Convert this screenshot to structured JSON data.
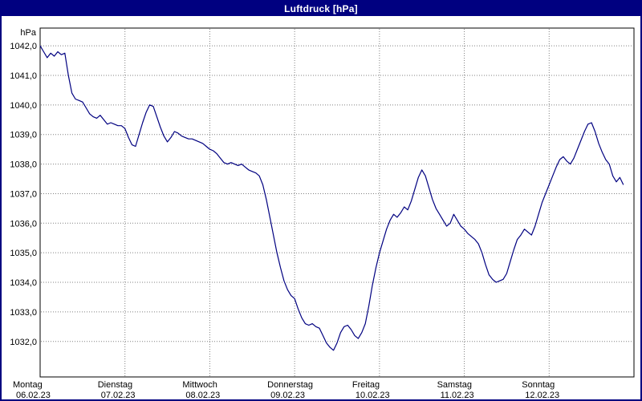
{
  "window": {
    "title": "Luftdruck [hPa]"
  },
  "colors": {
    "window_border": "#000080",
    "title_bar_bg": "#000080",
    "title_text": "#ffffff",
    "plot_bg": "#ffffff",
    "axis_border": "#000000",
    "grid": "#808080",
    "label_text": "#000000",
    "line": "#000080"
  },
  "chart_data": {
    "type": "line",
    "title": "Luftdruck [hPa]",
    "y_axis_unit_label": "hPa",
    "ylim": [
      1030.8,
      1042.6
    ],
    "grid": true,
    "legend": "none",
    "y_ticks": [
      {
        "value": 1042,
        "label": "1042,0"
      },
      {
        "value": 1041,
        "label": "1041,0"
      },
      {
        "value": 1040,
        "label": "1040,0"
      },
      {
        "value": 1039,
        "label": "1039,0"
      },
      {
        "value": 1038,
        "label": "1038,0"
      },
      {
        "value": 1037,
        "label": "1037,0"
      },
      {
        "value": 1036,
        "label": "1036,0"
      },
      {
        "value": 1035,
        "label": "1035,0"
      },
      {
        "value": 1034,
        "label": "1034,0"
      },
      {
        "value": 1033,
        "label": "1033,0"
      },
      {
        "value": 1032,
        "label": "1032,0"
      }
    ],
    "x_total_hours": 168,
    "x_sample_step_hours": 1,
    "x_days": [
      {
        "name": "Montag",
        "date": "06.02.23"
      },
      {
        "name": "Dienstag",
        "date": "07.02.23"
      },
      {
        "name": "Mittwoch",
        "date": "08.02.23"
      },
      {
        "name": "Donnerstag",
        "date": "09.02.23"
      },
      {
        "name": "Freitag",
        "date": "10.02.23"
      },
      {
        "name": "Samstag",
        "date": "11.02.23"
      },
      {
        "name": "Sonntag",
        "date": "12.02.23"
      }
    ],
    "series": [
      {
        "name": "Luftdruck",
        "unit": "hPa",
        "values": [
          1042.0,
          1041.8,
          1041.6,
          1041.75,
          1041.65,
          1041.8,
          1041.7,
          1041.75,
          1041.0,
          1040.4,
          1040.2,
          1040.15,
          1040.1,
          1039.9,
          1039.7,
          1039.6,
          1039.55,
          1039.65,
          1039.5,
          1039.35,
          1039.4,
          1039.35,
          1039.3,
          1039.3,
          1039.2,
          1038.9,
          1038.65,
          1038.6,
          1039.0,
          1039.4,
          1039.75,
          1040.0,
          1039.95,
          1039.6,
          1039.25,
          1038.95,
          1038.75,
          1038.9,
          1039.1,
          1039.05,
          1038.95,
          1038.9,
          1038.85,
          1038.85,
          1038.8,
          1038.75,
          1038.7,
          1038.6,
          1038.5,
          1038.45,
          1038.35,
          1038.2,
          1038.05,
          1038.0,
          1038.05,
          1038.0,
          1037.95,
          1038.0,
          1037.9,
          1037.8,
          1037.75,
          1037.7,
          1037.6,
          1037.3,
          1036.8,
          1036.2,
          1035.6,
          1035.0,
          1034.5,
          1034.05,
          1033.75,
          1033.55,
          1033.45,
          1033.1,
          1032.8,
          1032.6,
          1032.55,
          1032.6,
          1032.5,
          1032.45,
          1032.2,
          1031.95,
          1031.8,
          1031.7,
          1031.95,
          1032.3,
          1032.5,
          1032.55,
          1032.4,
          1032.2,
          1032.1,
          1032.3,
          1032.6,
          1033.2,
          1033.9,
          1034.5,
          1035.0,
          1035.4,
          1035.8,
          1036.1,
          1036.3,
          1036.2,
          1036.35,
          1036.55,
          1036.45,
          1036.75,
          1037.15,
          1037.55,
          1037.8,
          1037.6,
          1037.2,
          1036.8,
          1036.5,
          1036.3,
          1036.1,
          1035.9,
          1036.0,
          1036.3,
          1036.1,
          1035.9,
          1035.8,
          1035.65,
          1035.55,
          1035.45,
          1035.3,
          1035.0,
          1034.6,
          1034.25,
          1034.1,
          1034.0,
          1034.05,
          1034.1,
          1034.3,
          1034.7,
          1035.1,
          1035.45,
          1035.6,
          1035.8,
          1035.7,
          1035.6,
          1035.9,
          1036.3,
          1036.7,
          1037.0,
          1037.3,
          1037.6,
          1037.9,
          1038.15,
          1038.25,
          1038.1,
          1038.0,
          1038.2,
          1038.5,
          1038.8,
          1039.1,
          1039.35,
          1039.4,
          1039.1,
          1038.7,
          1038.4,
          1038.15,
          1038.0,
          1037.6,
          1037.4,
          1037.55,
          1037.3
        ]
      }
    ]
  }
}
